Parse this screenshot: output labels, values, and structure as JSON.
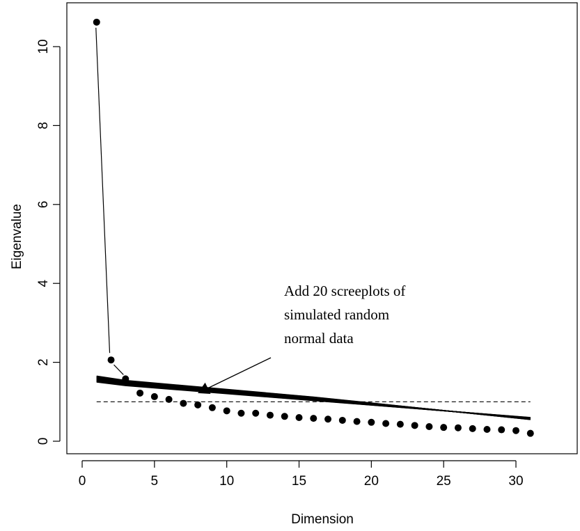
{
  "chart_data": {
    "type": "scatter",
    "xlabel": "Dimension",
    "ylabel": "Eigenvalue",
    "xlim": [
      0,
      32
    ],
    "ylim": [
      -0.3,
      11.3
    ],
    "x_ticks": [
      "0",
      "5",
      "10",
      "15",
      "20",
      "25",
      "30"
    ],
    "y_ticks": [
      "0",
      "2",
      "4",
      "6",
      "8",
      "10"
    ],
    "grid": false,
    "reference_line": {
      "y": 1,
      "style": "dashed"
    },
    "series": [
      {
        "kind": "points",
        "x": [
          1,
          2,
          3,
          4,
          5,
          6,
          7,
          8,
          9,
          10,
          11,
          12,
          13,
          14,
          15,
          16,
          17,
          18,
          19,
          20,
          21,
          22,
          23,
          24,
          25,
          26,
          27,
          28,
          29,
          30,
          31
        ],
        "values": [
          10.62,
          2.06,
          1.58,
          1.22,
          1.13,
          1.06,
          0.96,
          0.92,
          0.85,
          0.77,
          0.71,
          0.71,
          0.66,
          0.63,
          0.6,
          0.58,
          0.56,
          0.53,
          0.5,
          0.48,
          0.45,
          0.43,
          0.4,
          0.37,
          0.35,
          0.34,
          0.32,
          0.3,
          0.29,
          0.27,
          0.2
        ]
      },
      {
        "kind": "simulated_scree_lines",
        "count": 20,
        "x": [
          1,
          31
        ],
        "values_start_range": [
          1.5,
          1.65
        ],
        "values_end_range": [
          0.55,
          0.6
        ]
      }
    ],
    "annotations": [
      {
        "lines": [
          "Add 20 screeplots of",
          "simulated random",
          "normal data"
        ],
        "arrow_target": [
          8,
          1.22
        ]
      }
    ]
  },
  "colors": {
    "foreground": "#000000",
    "background": "#ffffff"
  }
}
